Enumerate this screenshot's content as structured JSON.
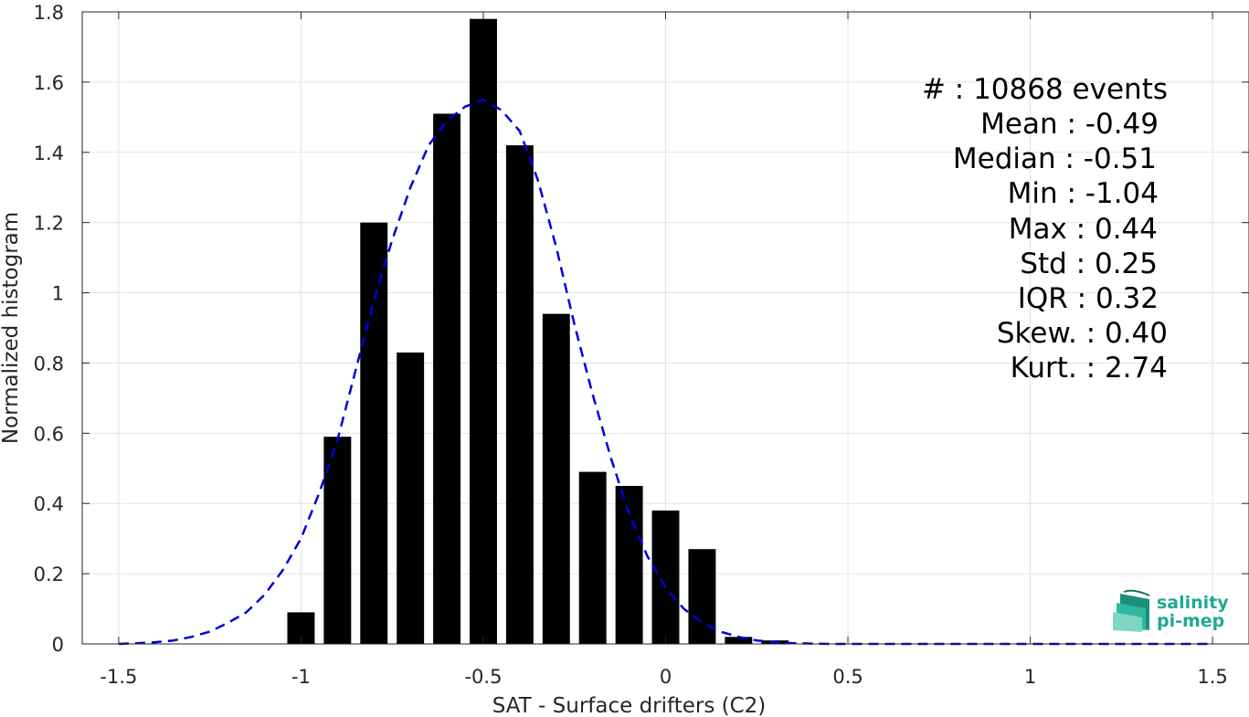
{
  "chart_data": {
    "type": "bar",
    "xlabel": "SAT - Surface drifters (C2)",
    "ylabel": "Normalized histogram",
    "xlim": [
      -1.6,
      1.6
    ],
    "ylim": [
      0,
      1.8
    ],
    "x_ticks": [
      "-1.5",
      "-1",
      "-0.5",
      "0",
      "0.5",
      "1",
      "1.5"
    ],
    "y_ticks": [
      "0",
      "0.2",
      "0.4",
      "0.6",
      "0.8",
      "1",
      "1.2",
      "1.4",
      "1.6",
      "1.8"
    ],
    "x_tick_values": [
      -1.5,
      -1,
      -0.5,
      0,
      0.5,
      1,
      1.5
    ],
    "y_tick_values": [
      0,
      0.2,
      0.4,
      0.6,
      0.8,
      1,
      1.2,
      1.4,
      1.6,
      1.8
    ],
    "grid": true,
    "bar_color": "#000000",
    "bar_width": 0.075,
    "bars": {
      "x": [
        -1.0,
        -0.9,
        -0.8,
        -0.7,
        -0.6,
        -0.5,
        -0.4,
        -0.3,
        -0.2,
        -0.1,
        0.0,
        0.1,
        0.2,
        0.3
      ],
      "values": [
        0.09,
        0.59,
        1.2,
        0.83,
        1.51,
        1.78,
        1.42,
        0.94,
        0.49,
        0.45,
        0.38,
        0.27,
        0.02,
        0.01
      ]
    },
    "fit_curve": {
      "color": "#0000dd",
      "style": "dashed",
      "x": [
        -1.5,
        -1.45,
        -1.4,
        -1.35,
        -1.3,
        -1.25,
        -1.2,
        -1.15,
        -1.1,
        -1.05,
        -1.0,
        -0.95,
        -0.9,
        -0.85,
        -0.8,
        -0.75,
        -0.7,
        -0.65,
        -0.6,
        -0.55,
        -0.5,
        -0.45,
        -0.4,
        -0.35,
        -0.3,
        -0.25,
        -0.2,
        -0.15,
        -0.1,
        -0.05,
        0.0,
        0.05,
        0.1,
        0.15,
        0.2,
        0.25,
        0.3,
        0.35,
        0.4,
        0.45,
        0.5,
        0.6,
        0.7,
        0.8,
        1.0,
        1.2,
        1.5
      ],
      "y": [
        0.0,
        0.002,
        0.005,
        0.01,
        0.02,
        0.035,
        0.06,
        0.09,
        0.14,
        0.21,
        0.3,
        0.43,
        0.58,
        0.78,
        0.98,
        1.15,
        1.3,
        1.42,
        1.49,
        1.53,
        1.55,
        1.52,
        1.46,
        1.32,
        1.13,
        0.91,
        0.71,
        0.53,
        0.37,
        0.25,
        0.16,
        0.1,
        0.06,
        0.035,
        0.02,
        0.01,
        0.005,
        0.002,
        0.001,
        0.0,
        0.0,
        0.0,
        0.0,
        0.0,
        0.0,
        0.0,
        0.0
      ]
    },
    "annotations": [
      "#  : 10868 events",
      "Mean : -0.49",
      "Median : -0.51",
      "Min : -1.04",
      "Max : 0.44",
      "Std : 0.25",
      "IQR : 0.32",
      "Skew. : 0.40",
      "Kurt. : 2.74"
    ]
  },
  "logo": {
    "line1": "salinity",
    "line2": "pi-mep"
  }
}
